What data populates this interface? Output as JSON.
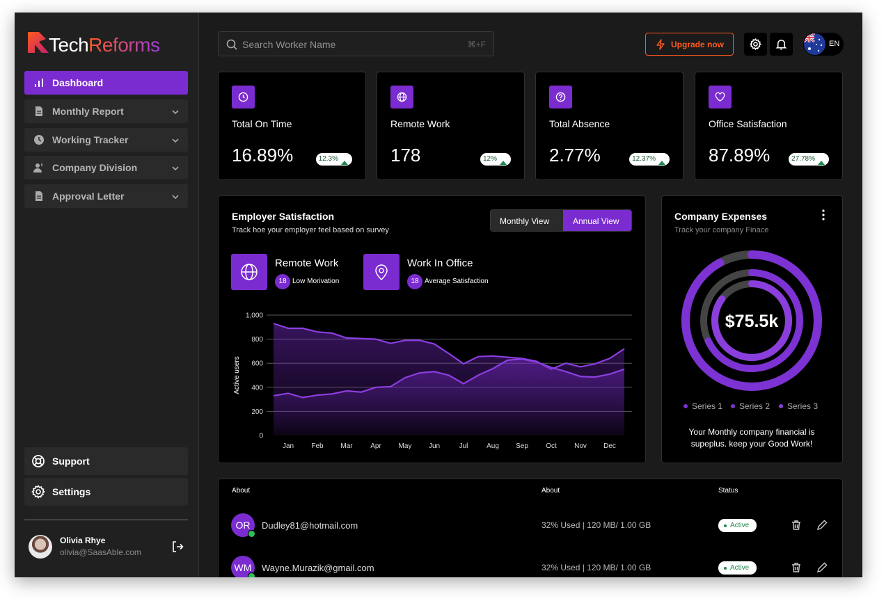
{
  "brand": {
    "first": "Tech",
    "second": "Reforms"
  },
  "nav": [
    "Dashboard",
    "Monthly Report",
    "Working Tracker",
    "Company Division",
    "Approval Letter"
  ],
  "nav_bottom": [
    "Support",
    "Settings"
  ],
  "user": {
    "name": "Olivia Rhye",
    "email": "olivia@SaasAble.com"
  },
  "search": {
    "placeholder": "Search Worker Name",
    "shortcut": "⌘+F"
  },
  "upgrade": "Upgrade now",
  "language": "EN",
  "stats": [
    {
      "title": "Total On Time",
      "value": "16.89%",
      "change": "12.3%"
    },
    {
      "title": "Remote Work",
      "value": "178",
      "change": "12%"
    },
    {
      "title": "Total Absence",
      "value": "2.77%",
      "change": "12.37%"
    },
    {
      "title": "Office Satisfaction",
      "value": "87.89%",
      "change": "27.78%"
    }
  ],
  "employer": {
    "views": [
      "Monthly View",
      "Annual View"
    ],
    "metrics": [
      {
        "title": "Remote Work",
        "count": "18",
        "note": "Low Morivation"
      },
      {
        "title": "Work In Office",
        "count": "18",
        "note": "Average Satisfaction"
      }
    ]
  },
  "chart_data": [
    {
      "type": "line",
      "title": "Employer Satisfaction",
      "subtitle": "Track hoe your employer feel based on survey",
      "y_label": "Active users",
      "categories": [
        null,
        "Jan",
        null,
        "Feb",
        null,
        "Mar",
        null,
        "Apr",
        null,
        "May",
        null,
        "Jun",
        null,
        "Jul",
        null,
        "Aug",
        null,
        "Sep",
        null,
        "Oct",
        null,
        "Nov",
        null,
        "Dec",
        null
      ],
      "series": [
        {
          "name": "Remote Work",
          "color": "#8b3ee0",
          "values": [
            930,
            890,
            890,
            860,
            850,
            810,
            805,
            800,
            765,
            790,
            790,
            760,
            680,
            595,
            655,
            660,
            650,
            640,
            615,
            550,
            600,
            570,
            595,
            640,
            720
          ]
        },
        {
          "name": "Work In Office",
          "color": "#8b3ee0",
          "values": [
            330,
            350,
            315,
            335,
            345,
            370,
            360,
            400,
            405,
            480,
            520,
            530,
            500,
            430,
            500,
            555,
            625,
            635,
            610,
            565,
            530,
            490,
            485,
            510,
            550
          ]
        }
      ],
      "ylim": [
        0,
        1000
      ],
      "yticks": [
        0,
        200,
        400,
        600,
        800,
        {
          "value": 1000,
          "label": "1,000"
        }
      ],
      "grid": true
    },
    {
      "type": "donut",
      "title": "Company Expenses",
      "subtitle": "Track your company Finace",
      "center_label": "$75.5k",
      "categories": [
        "Series 1",
        "Series 2",
        "Series 3"
      ],
      "values": [
        92,
        68,
        85
      ],
      "colors": [
        "#7d32d4",
        "#7d32d4",
        "#8a3fdc"
      ],
      "note": "Your Monthly company financial is supeplus. keep your Good Work!"
    }
  ],
  "table": {
    "headers": [
      "About",
      "About",
      "Status"
    ],
    "rows": [
      {
        "initials": "OR",
        "email": "Dudley81@hotmail.com",
        "usage": "32% Used | 120 MB/ 1.00 GB",
        "status": "Active"
      },
      {
        "initials": "WM",
        "email": "Wayne.Murazik@gmail.com",
        "usage": "32% Used | 120 MB/ 1.00 GB",
        "status": "Active"
      }
    ]
  }
}
